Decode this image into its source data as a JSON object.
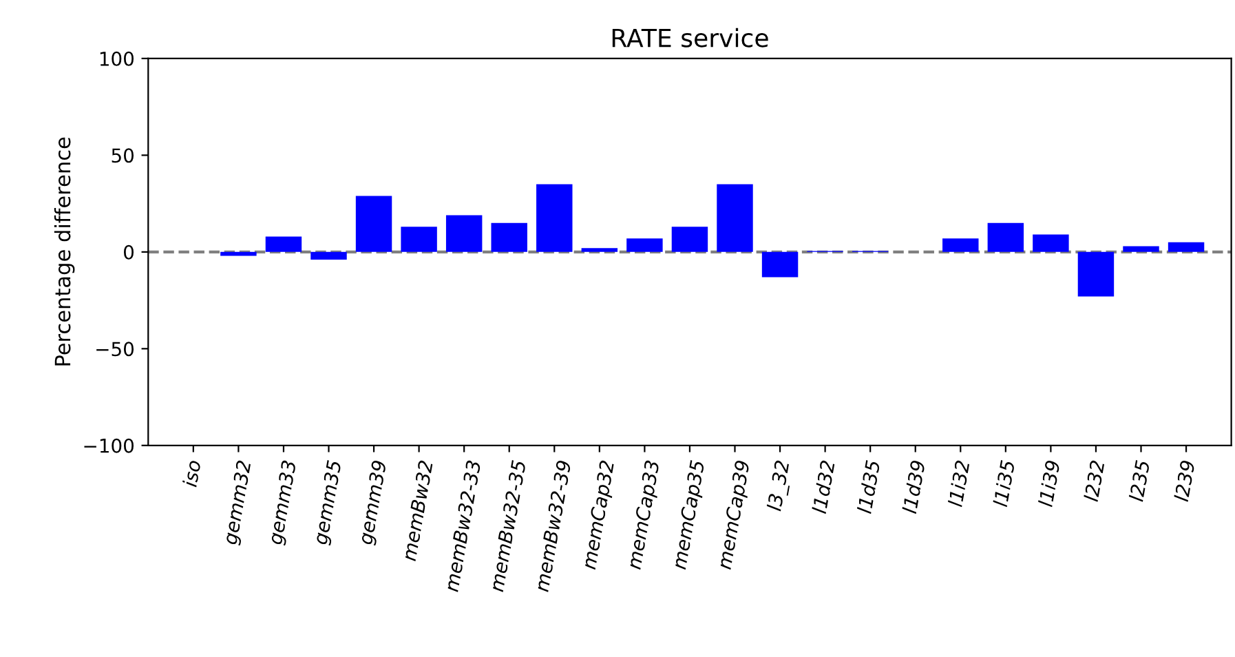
{
  "chart_data": {
    "type": "bar",
    "title": "RATE service",
    "ylabel": "Percentage difference",
    "categories": [
      "iso",
      "gemm32",
      "gemm33",
      "gemm35",
      "gemm39",
      "memBw32",
      "memBw32-33",
      "memBw32-35",
      "memBw32-39",
      "memCap32",
      "memCap33",
      "memCap35",
      "memCap39",
      "l3_32",
      "l1d32",
      "l1d35",
      "l1d39",
      "l1i32",
      "l1i35",
      "l1i39",
      "l232",
      "l235",
      "l239"
    ],
    "values": [
      0,
      -2,
      8,
      -4,
      29,
      13,
      19,
      15,
      35,
      2,
      7,
      13,
      35,
      -13,
      0.5,
      0.5,
      0,
      7,
      15,
      9,
      -23,
      3,
      5
    ],
    "color": "#0000ff",
    "ylim": [
      -100,
      100
    ],
    "yticks": [
      {
        "value": -100,
        "label": "−100"
      },
      {
        "value": -50,
        "label": "−50"
      },
      0,
      50,
      100
    ],
    "ref_lines": [
      {
        "axis": "y",
        "value": 0,
        "color": "#808080",
        "line_style": "dashed"
      }
    ],
    "grid": false
  }
}
